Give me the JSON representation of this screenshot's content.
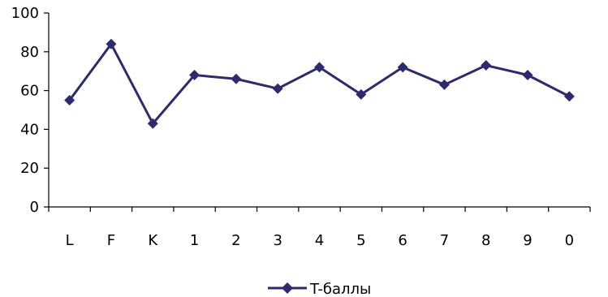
{
  "chart_data": {
    "type": "line",
    "title": "",
    "xlabel": "",
    "ylabel": "",
    "categories": [
      "L",
      "F",
      "K",
      "1",
      "2",
      "3",
      "4",
      "5",
      "6",
      "7",
      "8",
      "9",
      "0"
    ],
    "series": [
      {
        "name": "T-баллы",
        "values": [
          55,
          84,
          43,
          68,
          66,
          61,
          72,
          58,
          72,
          63,
          73,
          68,
          57
        ],
        "color": "#2e2a6e",
        "marker": "diamond"
      }
    ],
    "ylim": [
      0,
      100
    ],
    "yticks": [
      0,
      20,
      40,
      60,
      80,
      100
    ],
    "grid": false,
    "legend_position": "bottom-center"
  }
}
